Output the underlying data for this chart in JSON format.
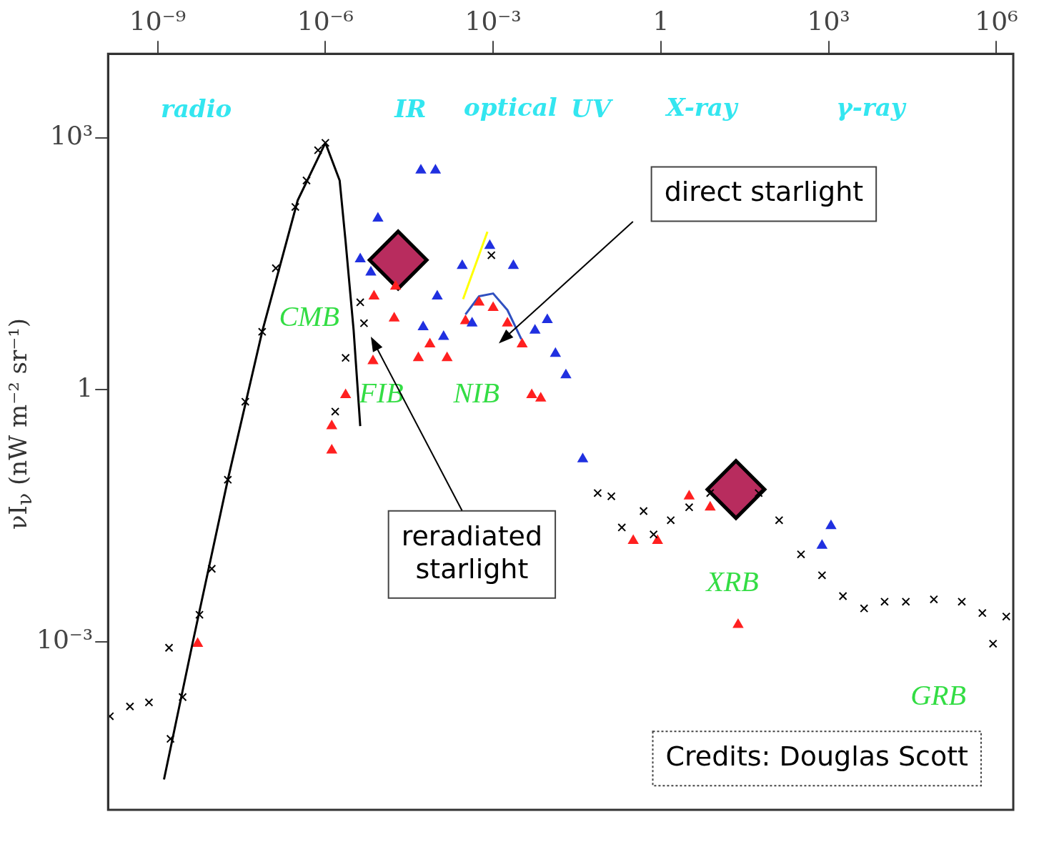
{
  "chart_data": {
    "type": "scatter",
    "ylabel": "νI$_{ν}$ (nW m⁻² sr⁻¹)",
    "log": "xy",
    "grid": false,
    "xlim": [
      1.3e-10,
      2000000.0
    ],
    "xticks": [
      {
        "value": 1e-09,
        "label": "10⁻⁹"
      },
      {
        "value": 1e-06,
        "label": "10⁻⁶"
      },
      {
        "value": 0.001,
        "label": "10⁻³"
      },
      1,
      {
        "value": 1000,
        "label": "10³"
      },
      {
        "value": 1000000,
        "label": "10⁶"
      }
    ],
    "ylim": [
      1e-05,
      10000.0
    ],
    "yticks": [
      {
        "value": 0.001,
        "label": "10⁻³"
      },
      1,
      {
        "value": 1000,
        "label": "10³"
      }
    ],
    "series": [
      {
        "type": "line",
        "color": "#000000",
        "marker": "none",
        "x": [
          1.3e-09,
          4.2e-09,
          1.8e-08,
          7.4e-08,
          3.2e-07,
          1e-06,
          1.8e-06,
          2.3e-06,
          3.2e-06,
          4.2e-06
        ],
        "values": [
          2.3e-05,
          0.00095,
          0.085,
          4.9,
          180,
          870,
          310,
          58,
          5.1,
          0.37
        ]
      },
      {
        "type": "scatter",
        "color": "#000000",
        "marker": "cross",
        "x": [
          1.4e-10,
          3.2e-10,
          7e-10,
          1.6e-09,
          1.7e-09,
          2.8e-09,
          5.6e-09,
          9.3e-09,
          1.8e-08,
          3.7e-08,
          7.4e-08,
          1.3e-07,
          2.9e-07,
          4.6e-07,
          7.4e-07,
          1e-06,
          1.5e-06,
          2.3e-06,
          4.2e-06,
          4.9e-06,
          0.00093,
          0.074,
          0.13,
          0.2,
          0.49,
          0.74,
          1.5,
          3.2,
          7.6,
          56,
          130,
          320,
          760,
          1800,
          4300,
          10000,
          24000,
          76000,
          240000,
          560000,
          870000,
          1500000
        ],
        "values": [
          0.00013,
          0.00017,
          0.00019,
          0.00085,
          7e-05,
          0.00022,
          0.0021,
          0.0074,
          0.085,
          0.72,
          4.9,
          28,
          150,
          310,
          710,
          870,
          0.55,
          2.4,
          11,
          6.2,
          40,
          0.059,
          0.054,
          0.023,
          0.036,
          0.019,
          0.028,
          0.04,
          0.059,
          0.059,
          0.028,
          0.011,
          0.0062,
          0.0035,
          0.0025,
          0.003,
          0.003,
          0.0032,
          0.003,
          0.0022,
          0.00095,
          0.002
        ]
      },
      {
        "type": "scatter",
        "color": "#2030e0",
        "marker": "triangle",
        "x": [
          5.1e-05,
          9.3e-05,
          8.7e-06,
          4.2e-06,
          6.5e-06,
          0.0001,
          0.00028,
          0.00087,
          0.0023,
          5.6e-05,
          0.00013,
          0.00042,
          0.0056,
          0.0093,
          0.013,
          0.02,
          0.04,
          760,
          1100
        ],
        "values": [
          410,
          410,
          110,
          36,
          25,
          13,
          30,
          52,
          30,
          5.6,
          4.3,
          6.2,
          5.1,
          6.8,
          2.7,
          1.5,
          0.15,
          0.014,
          0.024
        ]
      },
      {
        "type": "scatter",
        "color": "#ff2020",
        "marker": "triangle",
        "x": [
          5.2e-09,
          1.3e-06,
          1.3e-06,
          2.3e-06,
          7.1e-06,
          7.4e-06,
          1.7e-05,
          1.8e-05,
          4.6e-05,
          7.4e-05,
          0.00015,
          0.00032,
          0.00056,
          0.001,
          0.0018,
          0.0033,
          0.0049,
          0.0071,
          0.32,
          0.87,
          3.2,
          7.6,
          24
        ],
        "values": [
          0.00095,
          0.19,
          0.37,
          0.87,
          2.2,
          13,
          7.1,
          17,
          2.4,
          3.5,
          2.4,
          6.6,
          11,
          9.5,
          6.2,
          3.5,
          0.87,
          0.79,
          0.016,
          0.016,
          0.054,
          0.04,
          0.0016
        ]
      },
      {
        "type": "line",
        "color": "#ffff00",
        "marker": "none",
        "x": [
          0.00029,
          0.00079
        ],
        "values": [
          12,
          76
        ]
      },
      {
        "type": "line",
        "color": "#3050c0",
        "marker": "none",
        "x": [
          0.00032,
          0.00056,
          0.001,
          0.0018,
          0.0032
        ],
        "values": [
          7.9,
          13,
          14,
          8.9,
          4
        ]
      },
      {
        "type": "scatter",
        "color": "#b82c5e",
        "marker": "diamond",
        "x": [
          2e-05,
          22
        ],
        "values": [
          35,
          0.065
        ]
      }
    ],
    "annotations": [
      "radio",
      "IR",
      "optical",
      "UV",
      "X-ray",
      "γ-ray",
      "CMB",
      "FIB",
      "NIB",
      "XRB",
      "GRB",
      "direct starlight",
      "reradiated starlight",
      "Credits: Douglas Scott"
    ]
  }
}
